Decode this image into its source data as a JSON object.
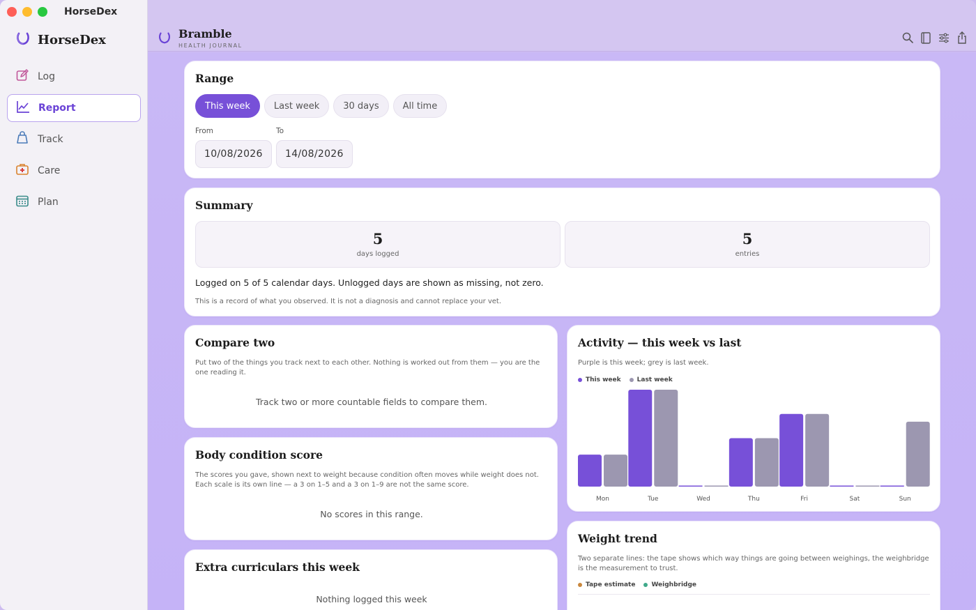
{
  "app": {
    "window_title": "HorseDex",
    "brand": "HorseDex"
  },
  "sidebar": {
    "items": [
      {
        "label": "Log",
        "icon": "edit-icon"
      },
      {
        "label": "Report",
        "icon": "chart-line-icon",
        "active": true
      },
      {
        "label": "Track",
        "icon": "kettlebell-icon"
      },
      {
        "label": "Care",
        "icon": "first-aid-kit-icon"
      },
      {
        "label": "Plan",
        "icon": "calendar-icon"
      }
    ]
  },
  "header": {
    "title": "Bramble",
    "subtitle": "HEALTH JOURNAL",
    "tools": [
      "search-icon",
      "book-icon",
      "sliders-icon",
      "share-icon"
    ]
  },
  "range": {
    "title": "Range",
    "options": [
      "This week",
      "Last week",
      "30 days",
      "All time"
    ],
    "selected": "This week",
    "from_label": "From",
    "from_value": "10/08/2026",
    "to_label": "To",
    "to_value": "14/08/2026"
  },
  "summary": {
    "title": "Summary",
    "days_logged_value": "5",
    "days_logged_label": "days logged",
    "entries_value": "5",
    "entries_label": "entries",
    "note": "Logged on 5 of 5 calendar days. Unlogged days are shown as missing, not zero.",
    "disclaimer": "This is a record of what you observed. It is not a diagnosis and cannot replace your vet."
  },
  "compare": {
    "title": "Compare two",
    "description": "Put two of the things you track next to each other. Nothing is worked out from them — you are the one reading it.",
    "empty": "Track two or more countable fields to compare them."
  },
  "bcs": {
    "title": "Body condition score",
    "description": "The scores you gave, shown next to weight because condition often moves while weight does not. Each scale is its own line — a 3 on 1–5 and a 3 on 1–9 are not the same score.",
    "empty": "No scores in this range."
  },
  "extra": {
    "title": "Extra curriculars this week",
    "empty": "Nothing logged this week"
  },
  "activity": {
    "title": "Activity — this week vs last",
    "description": "Purple is this week; grey is last week."
  },
  "weight": {
    "title": "Weight trend",
    "description": "Two separate lines: the tape shows which way things are going between weighings, the weighbridge is the measurement to trust.",
    "legend": [
      {
        "name": "Tape estimate",
        "color": "#c9873c"
      },
      {
        "name": "Weighbridge",
        "color": "#3fa98a"
      }
    ]
  },
  "chart_data": {
    "type": "bar",
    "categories": [
      "Mon",
      "Tue",
      "Wed",
      "Thu",
      "Fri",
      "Sat",
      "Sun"
    ],
    "series": [
      {
        "name": "This week",
        "color": "#7750d8",
        "values": [
          0.33,
          1.0,
          0.0,
          0.5,
          0.75,
          0.0,
          0.0
        ]
      },
      {
        "name": "Last week",
        "color": "#9c97b0",
        "values": [
          0.33,
          1.0,
          0.0,
          0.5,
          0.75,
          0.0,
          0.67
        ]
      }
    ],
    "ylim": [
      0,
      1
    ],
    "grid": false,
    "legend_position": "top-left"
  }
}
